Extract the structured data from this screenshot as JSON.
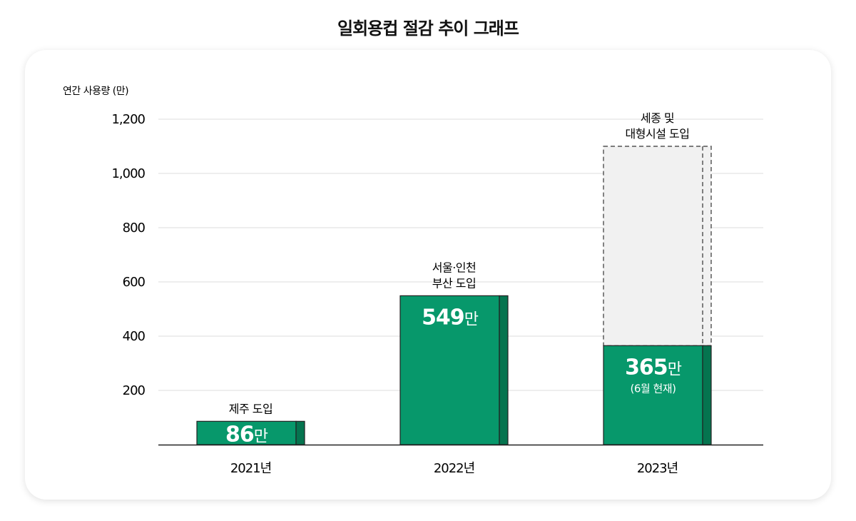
{
  "chart_data": {
    "type": "bar",
    "title": "일회용컵 절감 추이 그래프",
    "ylabel": "연간 사용량 (만)",
    "xlabel": "",
    "ylim": [
      0,
      1200
    ],
    "yticks": [
      200,
      400,
      600,
      800,
      1000,
      1200
    ],
    "ytick_labels": [
      "200",
      "400",
      "600",
      "800",
      "1,000",
      "1,200"
    ],
    "grid": true,
    "categories": [
      "2021년",
      "2022년",
      "2023년"
    ],
    "values": [
      86,
      549,
      365
    ],
    "value_numbers": [
      "86",
      "549",
      "365"
    ],
    "value_unit": "만",
    "annotations": [
      [
        "제주 도입"
      ],
      [
        "서울·인천",
        "부산 도입"
      ],
      [
        "세종 및",
        "대형시설 도입"
      ]
    ],
    "notes": [
      "",
      "",
      "(6월 현재)"
    ],
    "projection": {
      "category": "2023년",
      "value": 1100,
      "style": "dashed"
    },
    "colors": {
      "bar": "#07986b",
      "bar_side": "#05744f",
      "projection_fill": "#f1f1f1",
      "grid": "#dddddd"
    }
  }
}
